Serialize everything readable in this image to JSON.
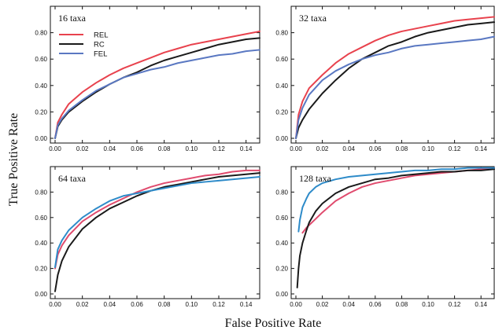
{
  "figure": {
    "xlabel": "False Positive Rate",
    "ylabel": "True Positive Rate"
  },
  "legend": [
    {
      "name": "REL",
      "color": "#e8424d"
    },
    {
      "name": "RC",
      "color": "#1a1a1a"
    },
    {
      "name": "FEL",
      "color": "#5a78c2"
    }
  ],
  "chart_data": [
    {
      "type": "line",
      "title": "16 taxa",
      "xlim": [
        0,
        0.15
      ],
      "ylim": [
        0,
        1
      ],
      "xticks": [
        "0.00",
        "0.02",
        "0.04",
        "0.06",
        "0.08",
        "0.10",
        "0.12",
        "0.14"
      ],
      "yticks": [
        "0.00",
        "0.20",
        "0.40",
        "0.60",
        "0.80"
      ],
      "legend_position": "top-left",
      "series": [
        {
          "name": "REL",
          "color": "#e8424d",
          "x": [
            0,
            0.002,
            0.005,
            0.01,
            0.02,
            0.03,
            0.04,
            0.05,
            0.06,
            0.07,
            0.08,
            0.09,
            0.1,
            0.11,
            0.12,
            0.13,
            0.14,
            0.15
          ],
          "y": [
            0,
            0.12,
            0.18,
            0.26,
            0.35,
            0.42,
            0.48,
            0.53,
            0.57,
            0.61,
            0.65,
            0.68,
            0.71,
            0.73,
            0.75,
            0.77,
            0.79,
            0.81
          ]
        },
        {
          "name": "RC",
          "color": "#1a1a1a",
          "x": [
            0,
            0.002,
            0.005,
            0.01,
            0.02,
            0.03,
            0.04,
            0.05,
            0.06,
            0.07,
            0.08,
            0.09,
            0.1,
            0.11,
            0.12,
            0.13,
            0.14,
            0.15
          ],
          "y": [
            0,
            0.09,
            0.14,
            0.2,
            0.28,
            0.35,
            0.41,
            0.46,
            0.5,
            0.55,
            0.59,
            0.62,
            0.65,
            0.68,
            0.71,
            0.73,
            0.75,
            0.76
          ]
        },
        {
          "name": "FEL",
          "color": "#5a78c2",
          "x": [
            0,
            0.002,
            0.005,
            0.01,
            0.02,
            0.03,
            0.04,
            0.05,
            0.06,
            0.07,
            0.08,
            0.09,
            0.1,
            0.11,
            0.12,
            0.13,
            0.14,
            0.15
          ],
          "y": [
            0,
            0.1,
            0.15,
            0.21,
            0.29,
            0.36,
            0.41,
            0.46,
            0.49,
            0.52,
            0.54,
            0.57,
            0.59,
            0.61,
            0.63,
            0.64,
            0.66,
            0.67
          ]
        }
      ]
    },
    {
      "type": "line",
      "title": "32 taxa",
      "xlim": [
        0,
        0.15
      ],
      "ylim": [
        0,
        1
      ],
      "xticks": [
        "0.00",
        "0.02",
        "0.04",
        "0.06",
        "0.08",
        "0.10",
        "0.12",
        "0.14"
      ],
      "yticks": [
        "0.00",
        "0.20",
        "0.40",
        "0.60",
        "0.80"
      ],
      "series": [
        {
          "name": "REL",
          "color": "#e8424d",
          "x": [
            0,
            0.002,
            0.005,
            0.01,
            0.02,
            0.03,
            0.04,
            0.05,
            0.06,
            0.07,
            0.08,
            0.09,
            0.1,
            0.11,
            0.12,
            0.13,
            0.14,
            0.15
          ],
          "y": [
            0,
            0.18,
            0.28,
            0.38,
            0.48,
            0.57,
            0.64,
            0.69,
            0.74,
            0.78,
            0.81,
            0.83,
            0.85,
            0.87,
            0.89,
            0.9,
            0.91,
            0.92
          ]
        },
        {
          "name": "RC",
          "color": "#1a1a1a",
          "x": [
            0,
            0.002,
            0.005,
            0.01,
            0.02,
            0.03,
            0.04,
            0.05,
            0.06,
            0.07,
            0.08,
            0.09,
            0.1,
            0.11,
            0.12,
            0.13,
            0.14,
            0.15
          ],
          "y": [
            0,
            0.08,
            0.14,
            0.22,
            0.34,
            0.44,
            0.53,
            0.6,
            0.65,
            0.7,
            0.73,
            0.77,
            0.8,
            0.82,
            0.84,
            0.86,
            0.87,
            0.88
          ]
        },
        {
          "name": "FEL",
          "color": "#5a78c2",
          "x": [
            0,
            0.002,
            0.005,
            0.01,
            0.02,
            0.03,
            0.04,
            0.05,
            0.06,
            0.07,
            0.08,
            0.09,
            0.1,
            0.11,
            0.12,
            0.13,
            0.14,
            0.15
          ],
          "y": [
            0,
            0.14,
            0.23,
            0.33,
            0.44,
            0.51,
            0.56,
            0.6,
            0.63,
            0.65,
            0.68,
            0.7,
            0.71,
            0.72,
            0.73,
            0.74,
            0.75,
            0.77
          ]
        }
      ]
    },
    {
      "type": "line",
      "title": "64 taxa",
      "xlim": [
        0,
        0.15
      ],
      "ylim": [
        0,
        1
      ],
      "xticks": [
        "0.00",
        "0.02",
        "0.04",
        "0.06",
        "0.08",
        "0.10",
        "0.12",
        "0.14"
      ],
      "yticks": [
        "0.00",
        "0.20",
        "0.40",
        "0.60",
        "0.80"
      ],
      "series": [
        {
          "name": "REL",
          "color": "#e04b6e",
          "x": [
            0,
            0.002,
            0.005,
            0.01,
            0.02,
            0.03,
            0.04,
            0.05,
            0.06,
            0.07,
            0.08,
            0.09,
            0.1,
            0.11,
            0.12,
            0.13,
            0.14,
            0.15
          ],
          "y": [
            0.2,
            0.31,
            0.38,
            0.46,
            0.57,
            0.64,
            0.7,
            0.75,
            0.8,
            0.84,
            0.87,
            0.89,
            0.91,
            0.93,
            0.94,
            0.96,
            0.97,
            0.97
          ]
        },
        {
          "name": "RC",
          "color": "#1a1a1a",
          "x": [
            0,
            0.002,
            0.005,
            0.01,
            0.02,
            0.03,
            0.04,
            0.05,
            0.06,
            0.07,
            0.08,
            0.09,
            0.1,
            0.11,
            0.12,
            0.13,
            0.14,
            0.15
          ],
          "y": [
            0.02,
            0.15,
            0.26,
            0.37,
            0.51,
            0.6,
            0.67,
            0.72,
            0.77,
            0.81,
            0.84,
            0.86,
            0.88,
            0.9,
            0.92,
            0.93,
            0.94,
            0.95
          ]
        },
        {
          "name": "FEL",
          "color": "#2e8bc9",
          "x": [
            0,
            0.002,
            0.005,
            0.01,
            0.02,
            0.03,
            0.04,
            0.05,
            0.06,
            0.07,
            0.08,
            0.09,
            0.1,
            0.11,
            0.12,
            0.13,
            0.14,
            0.15
          ],
          "y": [
            0.21,
            0.35,
            0.42,
            0.5,
            0.6,
            0.67,
            0.73,
            0.77,
            0.79,
            0.81,
            0.83,
            0.85,
            0.87,
            0.88,
            0.89,
            0.9,
            0.91,
            0.92
          ]
        }
      ]
    },
    {
      "type": "line",
      "title": "128 taxa",
      "xlim": [
        0,
        0.15
      ],
      "ylim": [
        0,
        1
      ],
      "xticks": [
        "0.00",
        "0.02",
        "0.04",
        "0.06",
        "0.08",
        "0.10",
        "0.12",
        "0.14"
      ],
      "yticks": [
        "0.00",
        "0.20",
        "0.40",
        "0.60",
        "0.80"
      ],
      "series": [
        {
          "name": "REL",
          "color": "#e04b6e",
          "x": [
            0.005,
            0.008,
            0.01,
            0.015,
            0.02,
            0.03,
            0.04,
            0.05,
            0.06,
            0.07,
            0.08,
            0.09,
            0.1,
            0.11,
            0.12,
            0.13,
            0.14,
            0.15
          ],
          "y": [
            0.48,
            0.52,
            0.54,
            0.59,
            0.64,
            0.73,
            0.79,
            0.84,
            0.87,
            0.89,
            0.91,
            0.93,
            0.94,
            0.95,
            0.96,
            0.97,
            0.98,
            0.99
          ]
        },
        {
          "name": "RC",
          "color": "#1a1a1a",
          "x": [
            0.001,
            0.002,
            0.003,
            0.005,
            0.008,
            0.01,
            0.015,
            0.02,
            0.03,
            0.04,
            0.05,
            0.06,
            0.07,
            0.08,
            0.09,
            0.1,
            0.11,
            0.12,
            0.13,
            0.14,
            0.15
          ],
          "y": [
            0.05,
            0.2,
            0.3,
            0.4,
            0.5,
            0.56,
            0.65,
            0.71,
            0.79,
            0.84,
            0.87,
            0.9,
            0.91,
            0.93,
            0.94,
            0.95,
            0.96,
            0.96,
            0.97,
            0.97,
            0.98
          ]
        },
        {
          "name": "FEL",
          "color": "#2e8bc9",
          "x": [
            0.002,
            0.003,
            0.005,
            0.008,
            0.01,
            0.015,
            0.02,
            0.03,
            0.04,
            0.05,
            0.06,
            0.07,
            0.08,
            0.09,
            0.1,
            0.11,
            0.12,
            0.13,
            0.14,
            0.15
          ],
          "y": [
            0.49,
            0.58,
            0.68,
            0.75,
            0.79,
            0.84,
            0.87,
            0.9,
            0.92,
            0.93,
            0.94,
            0.95,
            0.96,
            0.97,
            0.97,
            0.98,
            0.98,
            0.99,
            0.99,
            0.99
          ]
        }
      ]
    }
  ]
}
